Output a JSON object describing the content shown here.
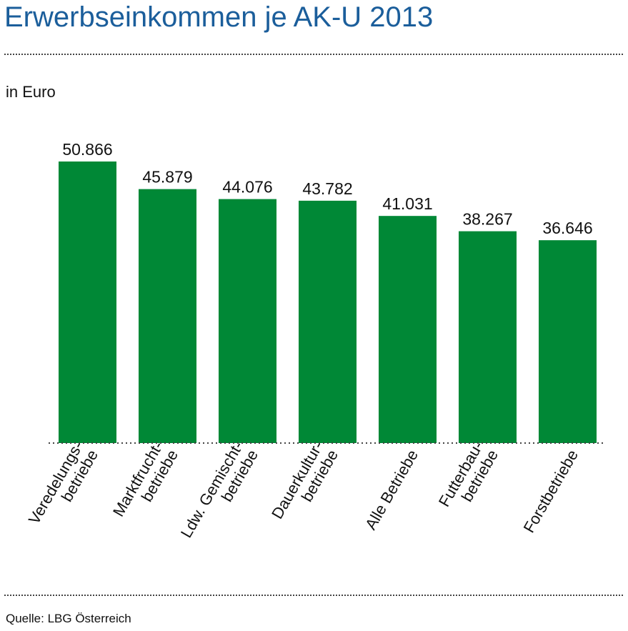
{
  "title": "Erwerbseinkommen je AK-U 2013",
  "unit_label": "in Euro",
  "source": "Quelle: LBG Österreich",
  "colors": {
    "bar": "#008836",
    "title": "#1b5e9b"
  },
  "chart_data": {
    "type": "bar",
    "title": "Erwerbseinkommen je AK-U 2013",
    "ylabel": "in Euro",
    "categories": [
      [
        "Veredelungs-",
        "betriebe"
      ],
      [
        "Marktfrucht-",
        "betriebe"
      ],
      [
        "Ldw. Gemischt-",
        "betriebe"
      ],
      [
        "Dauerkultur-",
        "betriebe"
      ],
      [
        "Alle Betriebe"
      ],
      [
        "Futterbau-",
        "betriebe"
      ],
      [
        "Forstbetriebe"
      ]
    ],
    "values": [
      50866,
      45879,
      44076,
      43782,
      41031,
      38267,
      36646
    ],
    "value_labels": [
      "50.866",
      "45.879",
      "44.076",
      "43.782",
      "41.031",
      "38.267",
      "36.646"
    ],
    "ylim": [
      0,
      50866
    ],
    "grid": false
  }
}
